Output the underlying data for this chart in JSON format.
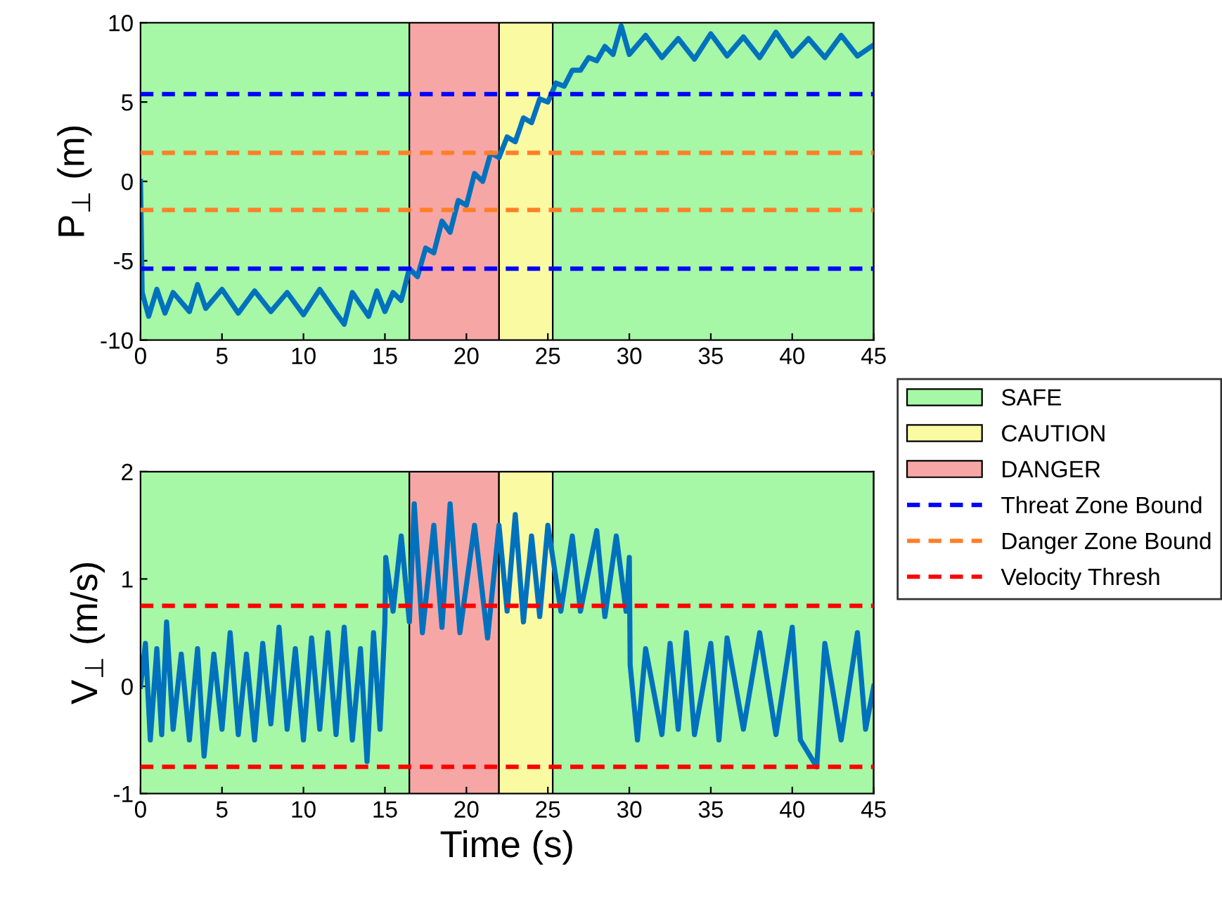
{
  "chart_data": [
    {
      "type": "line",
      "ylabel": "P$_{⊥}$ (m)",
      "xlim": [
        0,
        45
      ],
      "ylim": [
        -10,
        10
      ],
      "xticks": [
        0,
        5,
        10,
        15,
        20,
        25,
        30,
        35,
        40,
        45
      ],
      "yticks": [
        -10,
        -5,
        0,
        5,
        10
      ],
      "grid": false,
      "legend": "right",
      "marker": "none",
      "line_style": "solid",
      "bands": [
        {
          "axis": "x",
          "from": 0,
          "to": 16.5,
          "label": "SAFE",
          "color": "#a6f7a6"
        },
        {
          "axis": "x",
          "from": 22,
          "to": 25.3,
          "label": "CAUTION",
          "color": "#fafaa3"
        },
        {
          "axis": "x",
          "from": 16.5,
          "to": 22,
          "label": "DANGER",
          "color": "#f7a6a6"
        },
        {
          "axis": "x",
          "from": 25.3,
          "to": 45,
          "color": "#a6f7a6"
        }
      ],
      "ref_lines": [
        {
          "axis": "y",
          "value": 5.5,
          "label": "Threat Zone Bound",
          "color": "#0000ff",
          "line_style": "dashed"
        },
        {
          "axis": "y",
          "value": -5.5,
          "label": null,
          "color": "#0000ff",
          "line_style": "dashed"
        },
        {
          "axis": "y",
          "value": 1.8,
          "label": "Danger Zone Bound",
          "color": "#ff7f27",
          "line_style": "dashed"
        },
        {
          "axis": "y",
          "value": -1.8,
          "label": null,
          "color": "#ff7f27",
          "line_style": "dashed"
        }
      ],
      "series": [
        {
          "color": "#0072bd",
          "x": [
            0,
            0.1,
            0.5,
            1,
            1.5,
            2,
            3,
            3.5,
            4,
            5,
            6,
            7,
            8,
            9,
            10,
            11,
            12,
            12.5,
            13,
            14,
            14.5,
            15,
            15.5,
            16,
            16.5,
            17,
            17.5,
            18,
            18.5,
            19,
            19.5,
            20,
            20.5,
            21,
            21.5,
            22,
            22.5,
            23,
            23.5,
            24,
            24.5,
            25,
            25.5,
            26,
            26.5,
            27,
            27.5,
            28,
            28.5,
            29,
            29.5,
            30,
            31,
            32,
            33,
            34,
            35,
            36,
            37,
            38,
            39,
            40,
            41,
            42,
            43,
            44,
            45
          ],
          "values": [
            0,
            -7,
            -8.5,
            -6.8,
            -8.3,
            -7,
            -8.2,
            -6.5,
            -8,
            -6.8,
            -8.3,
            -6.9,
            -8.2,
            -7,
            -8.4,
            -6.8,
            -8.3,
            -9,
            -7,
            -8.5,
            -6.9,
            -8.2,
            -7,
            -7.5,
            -5.5,
            -6,
            -4.2,
            -4.5,
            -2.5,
            -3.2,
            -1.2,
            -1.5,
            0.5,
            0,
            1.8,
            1.5,
            2.8,
            2.5,
            4,
            3.7,
            5.2,
            5,
            6.2,
            6,
            7,
            7,
            7.8,
            7.6,
            8.5,
            8,
            9.8,
            8,
            9.2,
            7.8,
            9,
            7.7,
            9.3,
            7.9,
            9.1,
            7.8,
            9.4,
            7.9,
            9,
            7.8,
            9.2,
            7.9,
            8.6
          ]
        }
      ]
    },
    {
      "type": "line",
      "xlabel": "Time (s)",
      "ylabel": "V$_{⊥}$ (m/s)",
      "xlim": [
        0,
        45
      ],
      "ylim": [
        -1,
        2
      ],
      "xticks": [
        0,
        5,
        10,
        15,
        20,
        25,
        30,
        35,
        40,
        45
      ],
      "yticks": [
        -1,
        0,
        1,
        2
      ],
      "grid": false,
      "marker": "none",
      "line_style": "solid",
      "bands": [
        {
          "axis": "x",
          "from": 0,
          "to": 16.5,
          "color": "#a6f7a6"
        },
        {
          "axis": "x",
          "from": 16.5,
          "to": 22,
          "color": "#f7a6a6"
        },
        {
          "axis": "x",
          "from": 22,
          "to": 25.3,
          "color": "#fafaa3"
        },
        {
          "axis": "x",
          "from": 25.3,
          "to": 45,
          "color": "#a6f7a6"
        }
      ],
      "ref_lines": [
        {
          "axis": "y",
          "value": 0.75,
          "label": "Velocity Thresh",
          "color": "#ff0000",
          "line_style": "dashed"
        },
        {
          "axis": "y",
          "value": -0.75,
          "label": null,
          "color": "#ff0000",
          "line_style": "dashed"
        }
      ],
      "series": [
        {
          "color": "#0072bd",
          "x": [
            0,
            0.3,
            0.6,
            1,
            1.3,
            1.6,
            2,
            2.5,
            3,
            3.5,
            3.9,
            4.5,
            5,
            5.5,
            6,
            6.5,
            7,
            7.5,
            8,
            8.5,
            9,
            9.5,
            10,
            10.5,
            11,
            11.5,
            12,
            12.5,
            13,
            13.5,
            13.9,
            14.3,
            14.7,
            15,
            15.05,
            15.5,
            16,
            16.5,
            16.8,
            17.3,
            18,
            18.5,
            19,
            19.6,
            20.5,
            21.3,
            22,
            22.5,
            23,
            23.5,
            24,
            24.5,
            25,
            25.8,
            26.5,
            27,
            28,
            28.5,
            29.2,
            29.8,
            30,
            30.05,
            30.5,
            31,
            32,
            32.5,
            33,
            33.5,
            34,
            35,
            35.5,
            36,
            37,
            38,
            39,
            40,
            40.5,
            41.5,
            42,
            43,
            44,
            44.5,
            45
          ],
          "values": [
            0,
            0.4,
            -0.5,
            0.35,
            -0.45,
            0.6,
            -0.4,
            0.3,
            -0.5,
            0.35,
            -0.65,
            0.3,
            -0.4,
            0.5,
            -0.45,
            0.3,
            -0.5,
            0.4,
            -0.35,
            0.55,
            -0.4,
            0.35,
            -0.5,
            0.45,
            -0.4,
            0.5,
            -0.45,
            0.55,
            -0.5,
            0.35,
            -0.7,
            0.5,
            -0.4,
            0.6,
            1.2,
            0.7,
            1.4,
            0.6,
            1.7,
            0.5,
            1.5,
            0.55,
            1.7,
            0.5,
            1.5,
            0.45,
            1.5,
            0.7,
            1.6,
            0.6,
            1.4,
            0.65,
            1.5,
            0.7,
            1.4,
            0.7,
            1.45,
            0.65,
            1.4,
            0.7,
            1.2,
            0.2,
            -0.5,
            0.35,
            -0.45,
            0.4,
            -0.4,
            0.5,
            -0.45,
            0.4,
            -0.5,
            0.45,
            -0.4,
            0.5,
            -0.45,
            0.55,
            -0.5,
            -0.75,
            0.4,
            -0.5,
            0.5,
            -0.4,
            0
          ]
        }
      ]
    }
  ]
}
